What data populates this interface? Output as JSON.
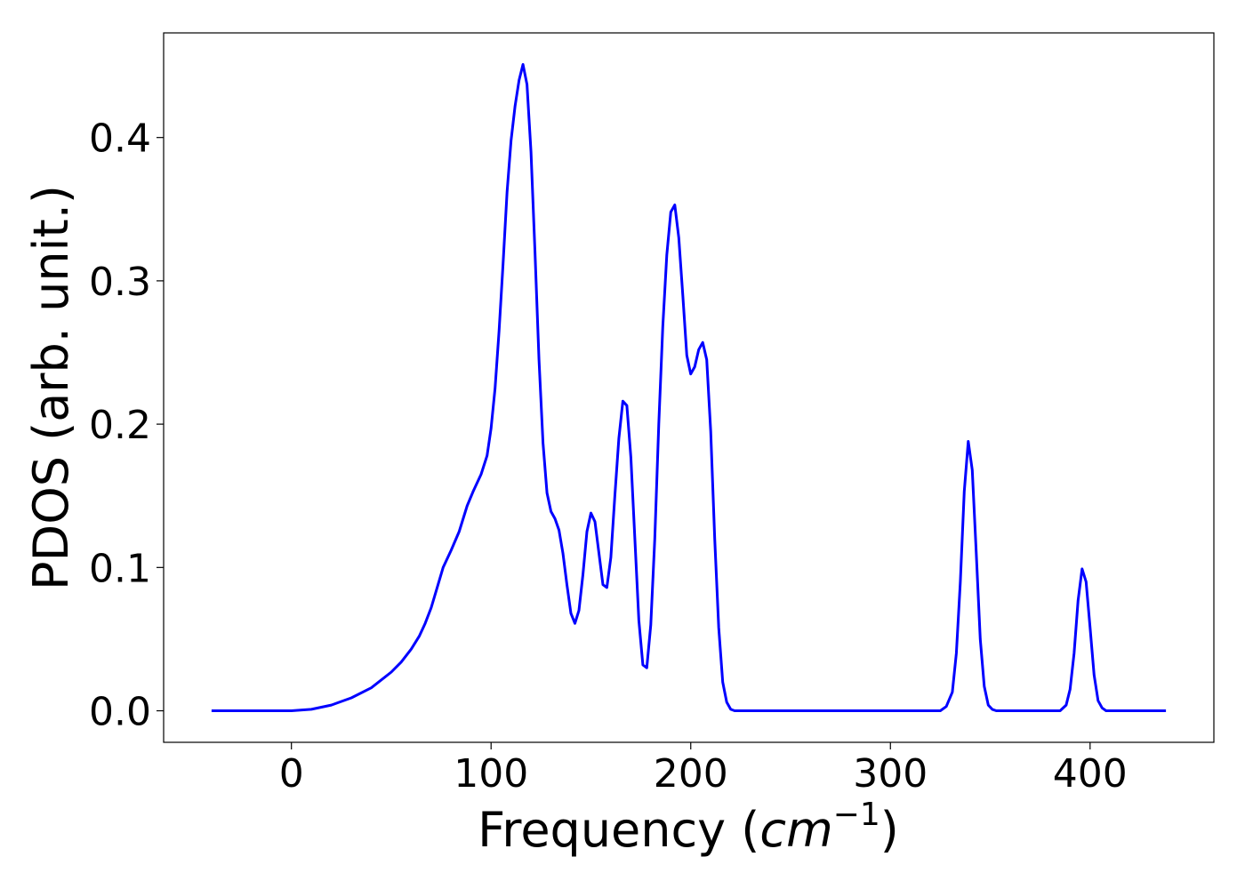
{
  "chart_data": {
    "type": "line",
    "title": "",
    "xlabel": {
      "prefix": "Frequency (",
      "math": "cm",
      "sup": "−1",
      "suffix": ")"
    },
    "ylabel": "PDOS (arb. unit.)",
    "xlim": [
      -64,
      462
    ],
    "ylim": [
      -0.022,
      0.473
    ],
    "xticks": [
      0,
      100,
      200,
      300,
      400
    ],
    "xtick_labels": [
      "0",
      "100",
      "200",
      "300",
      "400"
    ],
    "yticks": [
      0.0,
      0.1,
      0.2,
      0.3,
      0.4
    ],
    "ytick_labels": [
      "0.0",
      "0.1",
      "0.2",
      "0.3",
      "0.4"
    ],
    "grid": false,
    "legend": "none",
    "series": [
      {
        "color": "#0000ff",
        "points": [
          [
            -40,
            0.0
          ],
          [
            -20,
            0.0
          ],
          [
            0,
            0.0
          ],
          [
            10,
            0.001
          ],
          [
            20,
            0.004
          ],
          [
            30,
            0.009
          ],
          [
            40,
            0.016
          ],
          [
            50,
            0.027
          ],
          [
            55,
            0.034
          ],
          [
            60,
            0.043
          ],
          [
            64,
            0.052
          ],
          [
            67,
            0.061
          ],
          [
            70,
            0.072
          ],
          [
            73,
            0.086
          ],
          [
            76,
            0.1
          ],
          [
            80,
            0.112
          ],
          [
            84,
            0.125
          ],
          [
            88,
            0.143
          ],
          [
            91,
            0.153
          ],
          [
            95,
            0.165
          ],
          [
            98,
            0.178
          ],
          [
            100,
            0.197
          ],
          [
            102,
            0.225
          ],
          [
            104,
            0.265
          ],
          [
            106,
            0.312
          ],
          [
            108,
            0.362
          ],
          [
            110,
            0.398
          ],
          [
            112,
            0.422
          ],
          [
            114,
            0.44
          ],
          [
            116,
            0.451
          ],
          [
            118,
            0.437
          ],
          [
            120,
            0.39
          ],
          [
            122,
            0.32
          ],
          [
            124,
            0.245
          ],
          [
            126,
            0.187
          ],
          [
            128,
            0.152
          ],
          [
            130,
            0.139
          ],
          [
            132,
            0.134
          ],
          [
            134,
            0.126
          ],
          [
            136,
            0.11
          ],
          [
            138,
            0.088
          ],
          [
            140,
            0.068
          ],
          [
            142,
            0.061
          ],
          [
            144,
            0.07
          ],
          [
            146,
            0.095
          ],
          [
            148,
            0.125
          ],
          [
            150,
            0.138
          ],
          [
            152,
            0.132
          ],
          [
            154,
            0.11
          ],
          [
            156,
            0.088
          ],
          [
            158,
            0.086
          ],
          [
            160,
            0.107
          ],
          [
            162,
            0.15
          ],
          [
            164,
            0.19
          ],
          [
            166,
            0.216
          ],
          [
            168,
            0.213
          ],
          [
            170,
            0.177
          ],
          [
            172,
            0.12
          ],
          [
            174,
            0.063
          ],
          [
            176,
            0.032
          ],
          [
            178,
            0.03
          ],
          [
            180,
            0.06
          ],
          [
            182,
            0.12
          ],
          [
            184,
            0.2
          ],
          [
            186,
            0.268
          ],
          [
            188,
            0.318
          ],
          [
            190,
            0.348
          ],
          [
            192,
            0.353
          ],
          [
            194,
            0.33
          ],
          [
            196,
            0.29
          ],
          [
            198,
            0.248
          ],
          [
            200,
            0.235
          ],
          [
            202,
            0.24
          ],
          [
            204,
            0.252
          ],
          [
            206,
            0.257
          ],
          [
            208,
            0.245
          ],
          [
            210,
            0.195
          ],
          [
            212,
            0.12
          ],
          [
            214,
            0.058
          ],
          [
            216,
            0.02
          ],
          [
            218,
            0.006
          ],
          [
            220,
            0.001
          ],
          [
            222,
            0.0
          ],
          [
            240,
            0.0
          ],
          [
            300,
            0.0
          ],
          [
            325,
            0.0
          ],
          [
            328,
            0.003
          ],
          [
            331,
            0.013
          ],
          [
            333,
            0.04
          ],
          [
            335,
            0.09
          ],
          [
            337,
            0.153
          ],
          [
            339,
            0.188
          ],
          [
            341,
            0.168
          ],
          [
            343,
            0.11
          ],
          [
            345,
            0.05
          ],
          [
            347,
            0.017
          ],
          [
            349,
            0.004
          ],
          [
            351,
            0.001
          ],
          [
            353,
            0.0
          ],
          [
            385,
            0.0
          ],
          [
            388,
            0.004
          ],
          [
            390,
            0.015
          ],
          [
            392,
            0.04
          ],
          [
            394,
            0.077
          ],
          [
            396,
            0.099
          ],
          [
            398,
            0.09
          ],
          [
            400,
            0.058
          ],
          [
            402,
            0.025
          ],
          [
            404,
            0.007
          ],
          [
            406,
            0.002
          ],
          [
            408,
            0.0
          ],
          [
            420,
            0.0
          ],
          [
            438,
            0.0
          ]
        ]
      }
    ]
  }
}
